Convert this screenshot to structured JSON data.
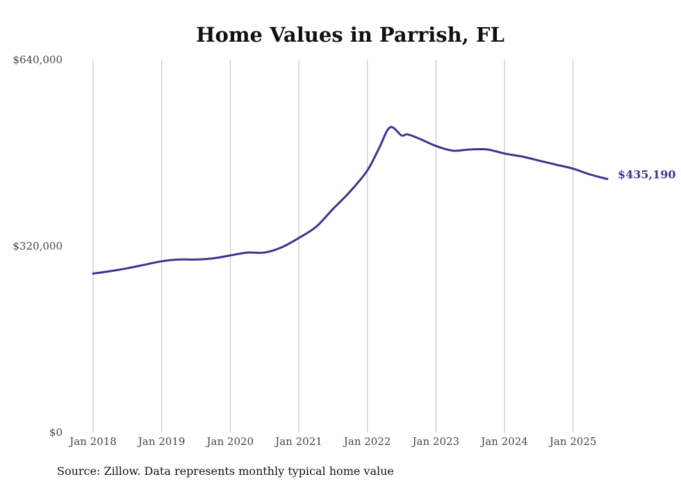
{
  "chart_data": {
    "type": "line",
    "title": "Home Values in Parrish, FL",
    "xlabel": "",
    "ylabel": "",
    "ylim": [
      0,
      640000
    ],
    "yticks": [
      0,
      320000,
      640000
    ],
    "ytick_labels": [
      "$0",
      "$320,000",
      "$640,000"
    ],
    "xlim": [
      2018.0,
      2025.5
    ],
    "xticks": [
      2018,
      2019,
      2020,
      2021,
      2022,
      2023,
      2024,
      2025
    ],
    "xtick_labels": [
      "Jan 2018",
      "Jan 2019",
      "Jan 2020",
      "Jan 2021",
      "Jan 2022",
      "Jan 2023",
      "Jan 2024",
      "Jan 2025"
    ],
    "grid": "vertical",
    "colors": {
      "line": "#3a3590",
      "grid": "#bbbbbb",
      "label": "#3a3590"
    },
    "series": [
      {
        "name": "Typical home value",
        "points": [
          [
            2018.0,
            273000
          ],
          [
            2018.25,
            277000
          ],
          [
            2018.5,
            282000
          ],
          [
            2018.75,
            288000
          ],
          [
            2019.0,
            294000
          ],
          [
            2019.25,
            297000
          ],
          [
            2019.5,
            297000
          ],
          [
            2019.75,
            299000
          ],
          [
            2020.0,
            304000
          ],
          [
            2020.25,
            309000
          ],
          [
            2020.5,
            309000
          ],
          [
            2020.75,
            318000
          ],
          [
            2021.0,
            334000
          ],
          [
            2021.25,
            353000
          ],
          [
            2021.5,
            384000
          ],
          [
            2021.75,
            414000
          ],
          [
            2022.0,
            450000
          ],
          [
            2022.17,
            488000
          ],
          [
            2022.33,
            524000
          ],
          [
            2022.5,
            510000
          ],
          [
            2022.58,
            512000
          ],
          [
            2022.75,
            505000
          ],
          [
            2023.0,
            492000
          ],
          [
            2023.25,
            484000
          ],
          [
            2023.5,
            486000
          ],
          [
            2023.75,
            486000
          ],
          [
            2024.0,
            479000
          ],
          [
            2024.25,
            474000
          ],
          [
            2024.5,
            467000
          ],
          [
            2024.75,
            460000
          ],
          [
            2025.0,
            453000
          ],
          [
            2025.25,
            443000
          ],
          [
            2025.5,
            435190
          ]
        ]
      }
    ],
    "end_label": "$435,190"
  },
  "footer": {
    "source": "Source: Zillow. Data represents monthly typical home value"
  }
}
